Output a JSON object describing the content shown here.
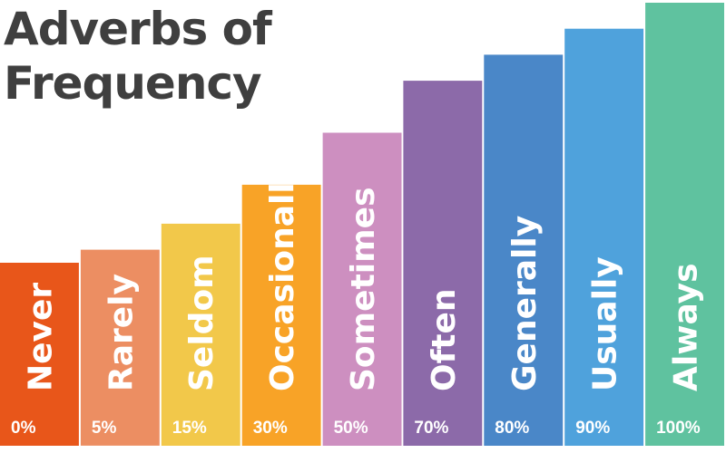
{
  "title": {
    "line1": "Adverbs of",
    "line2": "Frequency"
  },
  "chart_data": {
    "type": "bar",
    "title": "Adverbs of Frequency",
    "categories": [
      "Never",
      "Rarely",
      "Seldom",
      "Occasionally",
      "Sometimes",
      "Often",
      "Generally",
      "Usually",
      "Always"
    ],
    "value_labels": [
      "0%",
      "5%",
      "15%",
      "30%",
      "50%",
      "70%",
      "80%",
      "90%",
      "100%"
    ],
    "values": [
      0,
      5,
      15,
      30,
      50,
      70,
      80,
      90,
      100
    ],
    "colors": [
      "#e8561a",
      "#ec8e62",
      "#f2c84a",
      "#f8a327",
      "#cd8fc0",
      "#8c6aa9",
      "#4a87c8",
      "#4fa2dc",
      "#5fc29f"
    ],
    "grid": false,
    "legend": "none"
  }
}
